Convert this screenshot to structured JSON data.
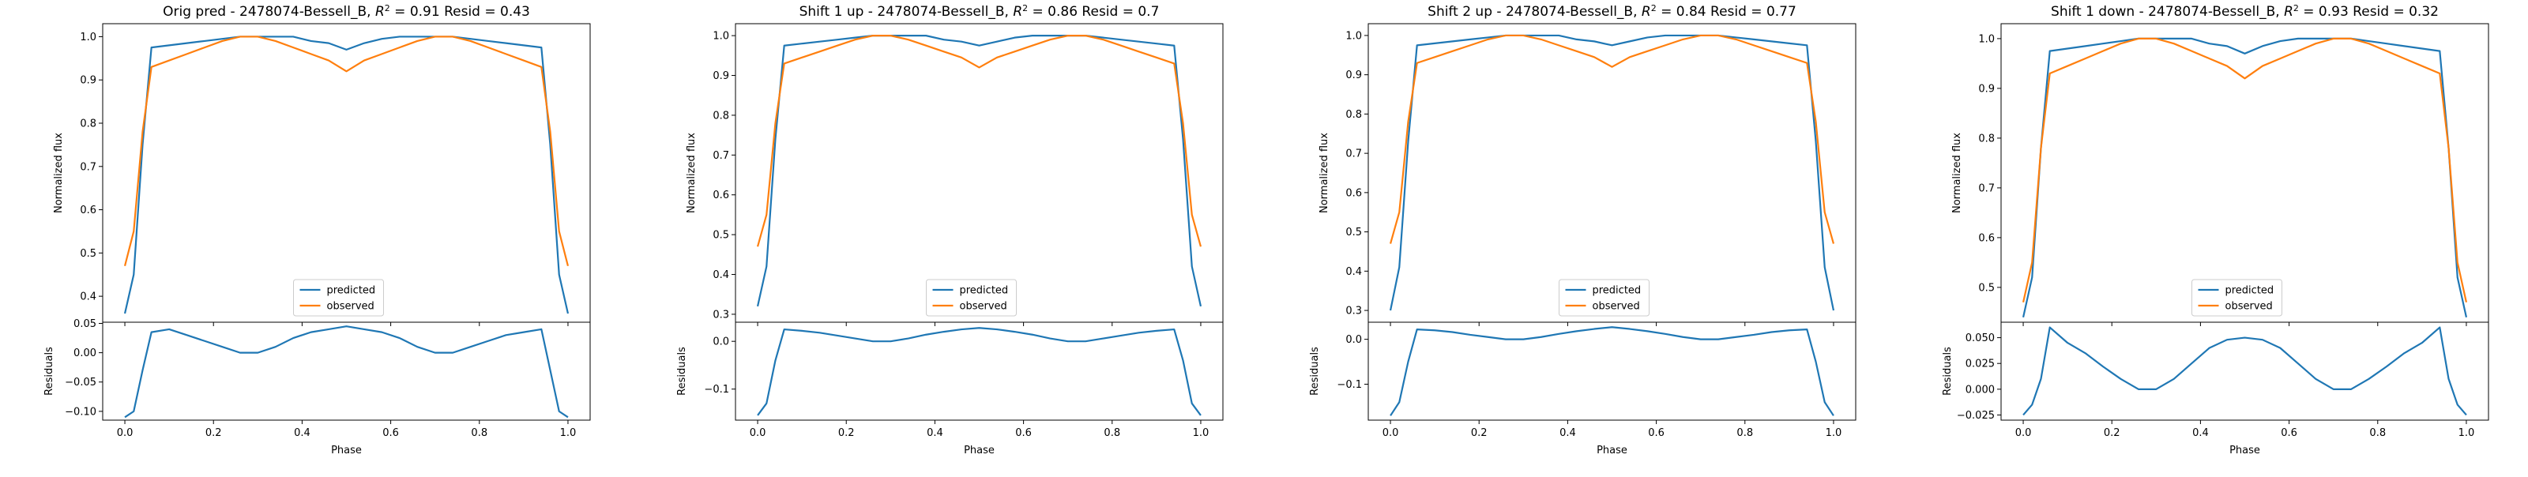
{
  "chart_data": [
    {
      "type": "line",
      "title": "Orig pred - 2478074-Bessell_B, $R^2 = 0.91$ Resid = 0.43",
      "title_parts": {
        "pre": "Orig pred - 2478074-Bessell_B, ",
        "r2": "R",
        "sup": "2",
        "post": " = 0.91 Resid = 0.43"
      },
      "top": {
        "ylabel": "Normalized flux",
        "ylim": [
          0.34,
          1.03
        ],
        "yticks": [
          "0.4",
          "0.5",
          "0.6",
          "0.7",
          "0.8",
          "0.9",
          "1.0"
        ],
        "legend": "lower center",
        "series": [
          {
            "name": "predicted",
            "color": "#1f77b4",
            "y": [
              0.36,
              0.45,
              0.75,
              0.975,
              0.98,
              0.985,
              0.99,
              0.995,
              1.0,
              1.0,
              1.0,
              1.0,
              0.99,
              0.985,
              0.97,
              0.985,
              0.995,
              1.0,
              1.0,
              1.0,
              1.0,
              0.995,
              0.99,
              0.985,
              0.98,
              0.975,
              0.75,
              0.45,
              0.36
            ]
          },
          {
            "name": "observed",
            "color": "#ff7f0e",
            "y": [
              0.47,
              0.55,
              0.78,
              0.93,
              0.945,
              0.96,
              0.975,
              0.99,
              1.0,
              1.0,
              0.99,
              0.975,
              0.96,
              0.945,
              0.92,
              0.945,
              0.96,
              0.975,
              0.99,
              1.0,
              1.0,
              0.99,
              0.975,
              0.96,
              0.945,
              0.93,
              0.78,
              0.55,
              0.47
            ]
          }
        ]
      },
      "bottom": {
        "ylabel": "Residuals",
        "ylim": [
          -0.115,
          0.052
        ],
        "yticks": [
          "-0.10",
          "-0.05",
          "0.00",
          "0.05"
        ],
        "xlabel": "Phase",
        "series": [
          {
            "name": "",
            "color": "#1f77b4",
            "y": [
              -0.11,
              -0.1,
              -0.03,
              0.035,
              0.04,
              0.03,
              0.02,
              0.01,
              0.0,
              0.0,
              0.01,
              0.025,
              0.035,
              0.04,
              0.045,
              0.04,
              0.035,
              0.025,
              0.01,
              0.0,
              0.0,
              0.01,
              0.02,
              0.03,
              0.035,
              0.04,
              -0.03,
              -0.1,
              -0.11
            ]
          }
        ]
      }
    },
    {
      "type": "line",
      "title": "Shift 1 up - 2478074-Bessell_B, $R^2 = 0.86$ Resid = 0.7",
      "title_parts": {
        "pre": "Shift 1 up - 2478074-Bessell_B, ",
        "r2": "R",
        "sup": "2",
        "post": " = 0.86 Resid = 0.7"
      },
      "top": {
        "ylabel": "Normalized flux",
        "ylim": [
          0.28,
          1.03
        ],
        "yticks": [
          "0.3",
          "0.4",
          "0.5",
          "0.6",
          "0.7",
          "0.8",
          "0.9",
          "1.0"
        ],
        "legend": "lower center",
        "series": [
          {
            "name": "predicted",
            "color": "#1f77b4",
            "y": [
              0.32,
              0.42,
              0.74,
              0.975,
              0.98,
              0.985,
              0.99,
              0.995,
              1.0,
              1.0,
              1.0,
              1.0,
              0.99,
              0.985,
              0.975,
              0.985,
              0.995,
              1.0,
              1.0,
              1.0,
              1.0,
              0.995,
              0.99,
              0.985,
              0.98,
              0.975,
              0.74,
              0.42,
              0.32
            ]
          },
          {
            "name": "observed",
            "color": "#ff7f0e",
            "y": [
              0.47,
              0.55,
              0.78,
              0.93,
              0.945,
              0.96,
              0.975,
              0.99,
              1.0,
              1.0,
              0.99,
              0.975,
              0.96,
              0.945,
              0.92,
              0.945,
              0.96,
              0.975,
              0.99,
              1.0,
              1.0,
              0.99,
              0.975,
              0.96,
              0.945,
              0.93,
              0.78,
              0.55,
              0.47
            ]
          }
        ]
      },
      "bottom": {
        "ylabel": "Residuals",
        "ylim": [
          -0.165,
          0.04
        ],
        "yticks": [
          "-0.1",
          "0.0"
        ],
        "xlabel": "Phase",
        "series": [
          {
            "name": "",
            "color": "#1f77b4",
            "y": [
              -0.155,
              -0.13,
              -0.04,
              0.025,
              0.022,
              0.018,
              0.012,
              0.006,
              0.0,
              0.0,
              0.006,
              0.014,
              0.02,
              0.025,
              0.028,
              0.025,
              0.02,
              0.014,
              0.006,
              0.0,
              0.0,
              0.006,
              0.012,
              0.018,
              0.022,
              0.025,
              -0.04,
              -0.13,
              -0.155
            ]
          }
        ]
      }
    },
    {
      "type": "line",
      "title": "Shift 2 up - 2478074-Bessell_B, $R^2 = 0.84$ Resid = 0.77",
      "title_parts": {
        "pre": "Shift 2 up - 2478074-Bessell_B, ",
        "r2": "R",
        "sup": "2",
        "post": " = 0.84 Resid = 0.77"
      },
      "top": {
        "ylabel": "Normalized flux",
        "ylim": [
          0.27,
          1.03
        ],
        "yticks": [
          "0.3",
          "0.4",
          "0.5",
          "0.6",
          "0.7",
          "0.8",
          "0.9",
          "1.0"
        ],
        "legend": "lower center",
        "series": [
          {
            "name": "predicted",
            "color": "#1f77b4",
            "y": [
              0.3,
              0.41,
              0.73,
              0.975,
              0.98,
              0.985,
              0.99,
              0.995,
              1.0,
              1.0,
              1.0,
              1.0,
              0.99,
              0.985,
              0.975,
              0.985,
              0.995,
              1.0,
              1.0,
              1.0,
              1.0,
              0.995,
              0.99,
              0.985,
              0.98,
              0.975,
              0.73,
              0.41,
              0.3
            ]
          },
          {
            "name": "observed",
            "color": "#ff7f0e",
            "y": [
              0.47,
              0.55,
              0.78,
              0.93,
              0.945,
              0.96,
              0.975,
              0.99,
              1.0,
              1.0,
              0.99,
              0.975,
              0.96,
              0.945,
              0.92,
              0.945,
              0.96,
              0.975,
              0.99,
              1.0,
              1.0,
              0.99,
              0.975,
              0.96,
              0.945,
              0.93,
              0.78,
              0.55,
              0.47
            ]
          }
        ]
      },
      "bottom": {
        "ylabel": "Residuals",
        "ylim": [
          -0.18,
          0.038
        ],
        "yticks": [
          "-0.1",
          "0.0"
        ],
        "xlabel": "Phase",
        "series": [
          {
            "name": "",
            "color": "#1f77b4",
            "y": [
              -0.17,
              -0.14,
              -0.05,
              0.022,
              0.02,
              0.016,
              0.01,
              0.005,
              0.0,
              0.0,
              0.005,
              0.012,
              0.018,
              0.023,
              0.027,
              0.023,
              0.018,
              0.012,
              0.005,
              0.0,
              0.0,
              0.005,
              0.01,
              0.016,
              0.02,
              0.022,
              -0.05,
              -0.14,
              -0.17
            ]
          }
        ]
      }
    },
    {
      "type": "line",
      "title": "Shift 1 down - 2478074-Bessell_B, $R^2 = 0.93$ Resid = 0.32",
      "title_parts": {
        "pre": "Shift 1 down - 2478074-Bessell_B, ",
        "r2": "R",
        "sup": "2",
        "post": " = 0.93 Resid = 0.32"
      },
      "top": {
        "ylabel": "Normalized flux",
        "ylim": [
          0.43,
          1.03
        ],
        "yticks": [
          "0.5",
          "0.6",
          "0.7",
          "0.8",
          "0.9",
          "1.0"
        ],
        "legend": "lower center",
        "series": [
          {
            "name": "predicted",
            "color": "#1f77b4",
            "y": [
              0.44,
              0.52,
              0.78,
              0.975,
              0.98,
              0.985,
              0.99,
              0.995,
              1.0,
              1.0,
              1.0,
              1.0,
              0.99,
              0.985,
              0.97,
              0.985,
              0.995,
              1.0,
              1.0,
              1.0,
              1.0,
              0.995,
              0.99,
              0.985,
              0.98,
              0.975,
              0.78,
              0.52,
              0.44
            ]
          },
          {
            "name": "observed",
            "color": "#ff7f0e",
            "y": [
              0.47,
              0.55,
              0.78,
              0.93,
              0.945,
              0.96,
              0.975,
              0.99,
              1.0,
              1.0,
              0.99,
              0.975,
              0.96,
              0.945,
              0.92,
              0.945,
              0.96,
              0.975,
              0.99,
              1.0,
              1.0,
              0.99,
              0.975,
              0.96,
              0.945,
              0.93,
              0.78,
              0.55,
              0.47
            ]
          }
        ]
      },
      "bottom": {
        "ylabel": "Residuals",
        "ylim": [
          -0.03,
          0.065
        ],
        "yticks": [
          "-0.025",
          "0.000",
          "0.025",
          "0.050"
        ],
        "xlabel": "Phase",
        "series": [
          {
            "name": "",
            "color": "#1f77b4",
            "y": [
              -0.025,
              -0.015,
              0.01,
              0.06,
              0.045,
              0.035,
              0.022,
              0.01,
              0.0,
              0.0,
              0.01,
              0.025,
              0.04,
              0.048,
              0.05,
              0.048,
              0.04,
              0.025,
              0.01,
              0.0,
              0.0,
              0.01,
              0.022,
              0.035,
              0.045,
              0.06,
              0.01,
              -0.015,
              -0.025
            ]
          }
        ]
      }
    }
  ],
  "shared": {
    "x": [
      0.0,
      0.02,
      0.04,
      0.06,
      0.1,
      0.14,
      0.18,
      0.22,
      0.26,
      0.3,
      0.34,
      0.38,
      0.42,
      0.46,
      0.5,
      0.54,
      0.58,
      0.62,
      0.66,
      0.7,
      0.74,
      0.78,
      0.82,
      0.86,
      0.9,
      0.94,
      0.96,
      0.98,
      1.0
    ],
    "xlim": [
      -0.05,
      1.05
    ],
    "xticks": [
      "0.0",
      "0.2",
      "0.4",
      "0.6",
      "0.8",
      "1.0"
    ]
  }
}
